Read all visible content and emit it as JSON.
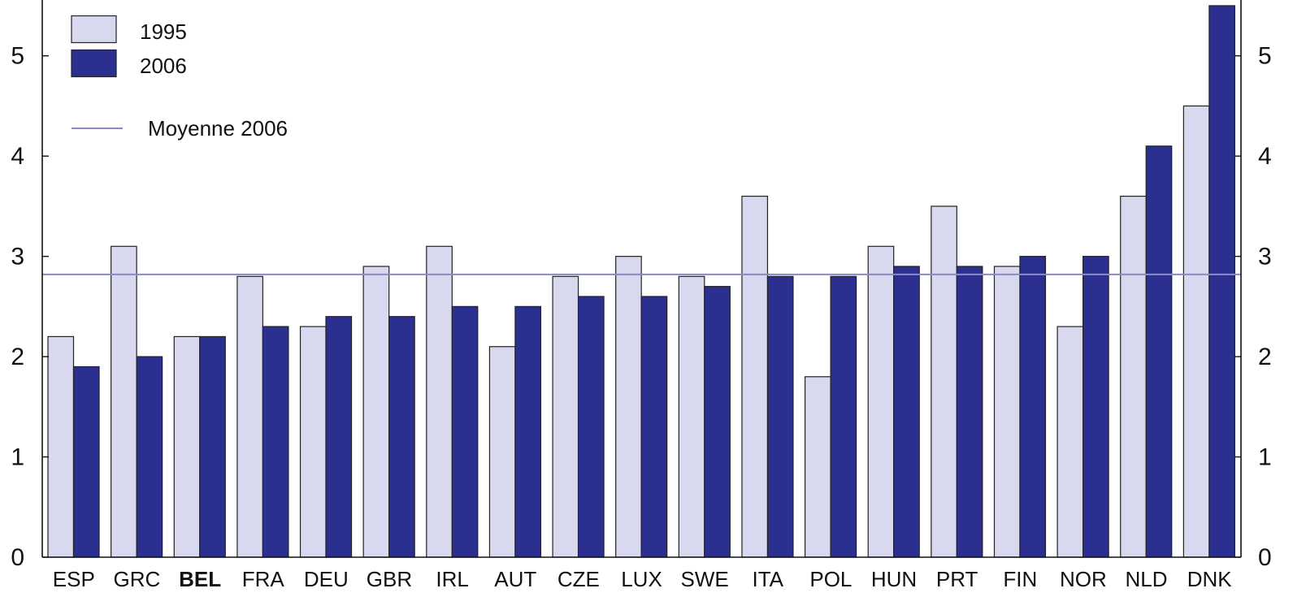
{
  "chart_data": {
    "type": "bar",
    "categories": [
      "ESP",
      "GRC",
      "BEL",
      "FRA",
      "DEU",
      "GBR",
      "IRL",
      "AUT",
      "CZE",
      "LUX",
      "SWE",
      "ITA",
      "POL",
      "HUN",
      "PRT",
      "FIN",
      "NOR",
      "NLD",
      "DNK"
    ],
    "highlighted_category": "BEL",
    "series": [
      {
        "name": "1995",
        "color": "#d8d8ee",
        "values": [
          2.2,
          3.1,
          2.2,
          2.8,
          2.3,
          2.9,
          3.1,
          2.1,
          2.8,
          3.0,
          2.8,
          3.6,
          1.8,
          3.1,
          3.5,
          2.9,
          2.3,
          3.6,
          4.5
        ]
      },
      {
        "name": "2006",
        "color": "#2b3090",
        "values": [
          1.9,
          2.0,
          2.2,
          2.3,
          2.4,
          2.4,
          2.5,
          2.5,
          2.6,
          2.6,
          2.7,
          2.8,
          2.8,
          2.9,
          2.9,
          3.0,
          3.0,
          4.1,
          5.5
        ]
      }
    ],
    "reference_line": {
      "label": "Moyenne 2006",
      "value": 2.82,
      "color": "#8a8ac8"
    },
    "ylim": [
      0,
      5.5
    ],
    "yticks": [
      0,
      1,
      2,
      3,
      4,
      5
    ],
    "ytick_labels": [
      "0",
      "1",
      "2",
      "3",
      "4",
      "5"
    ],
    "right_axis_duplicate": true,
    "grid": false,
    "legend_position": "top-left",
    "title": "",
    "xlabel": "",
    "ylabel": ""
  }
}
